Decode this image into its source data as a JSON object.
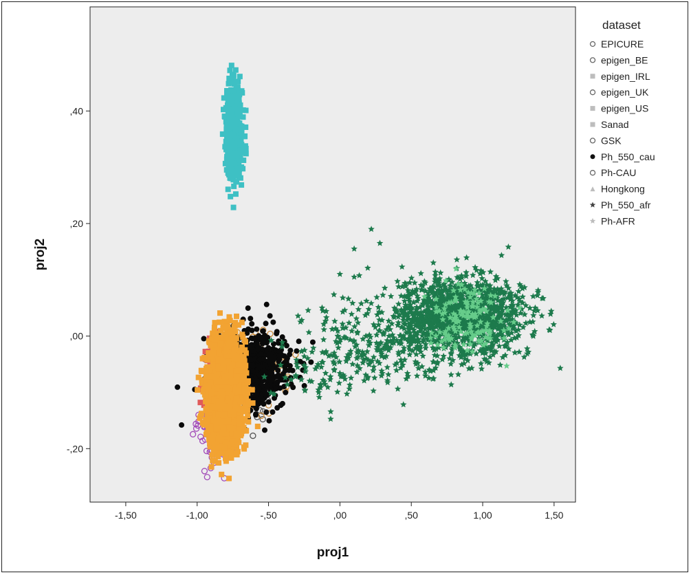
{
  "chart_data": {
    "type": "scatter",
    "xlabel": "proj1",
    "ylabel": "proj2",
    "xlim": [
      -1.75,
      1.65
    ],
    "ylim": [
      -0.295,
      0.585
    ],
    "xticks": [
      -1.5,
      -1.0,
      -0.5,
      0.0,
      0.5,
      1.0,
      1.5
    ],
    "xtick_labels": [
      "-1,50",
      "-1,00",
      "-,50",
      ",00",
      ",50",
      "1,00",
      "1,50"
    ],
    "yticks": [
      -0.2,
      0.0,
      0.2,
      0.4
    ],
    "ytick_labels": [
      "-,20",
      ",00",
      ",20",
      ",40"
    ],
    "grid": false,
    "legend_title": "dataset",
    "legend_position": "right",
    "plot_background": "#ededed",
    "series": [
      {
        "name": "EPICURE",
        "marker": "circle-open",
        "color": "#555555",
        "clusters": [
          {
            "cx": -0.65,
            "cy": -0.09,
            "sx": 0.12,
            "sy": 0.045,
            "n": 30
          }
        ]
      },
      {
        "name": "epigen_BE",
        "marker": "circle-open",
        "color": "#999999",
        "clusters": [
          {
            "cx": -0.82,
            "cy": -0.12,
            "sx": 0.05,
            "sy": 0.04,
            "n": 40
          }
        ]
      },
      {
        "name": "epigen_IRL",
        "marker": "square-open",
        "color": "#d0d0d0",
        "clusters": [
          {
            "cx": -0.83,
            "cy": -0.1,
            "sx": 0.05,
            "sy": 0.05,
            "n": 40
          }
        ]
      },
      {
        "name": "epigen_UK",
        "marker": "circle-open",
        "color": "#a24bb8",
        "clusters": [
          {
            "cx": -0.86,
            "cy": -0.16,
            "sx": 0.06,
            "sy": 0.035,
            "n": 140
          }
        ]
      },
      {
        "name": "epigen_US",
        "marker": "square-open",
        "color": "#e05a5a",
        "clusters": [
          {
            "cx": -0.9,
            "cy": -0.08,
            "sx": 0.03,
            "sy": 0.045,
            "n": 60
          }
        ]
      },
      {
        "name": "Sanad",
        "marker": "square-open",
        "color": "#3ec0c4",
        "clusters": [
          {
            "cx": -0.74,
            "cy": 0.36,
            "sx": 0.028,
            "sy": 0.04,
            "n": 700
          }
        ]
      },
      {
        "name": "GSK",
        "marker": "circle-open",
        "color": "#c98a3a",
        "clusters": [
          {
            "cx": -0.62,
            "cy": -0.06,
            "sx": 0.12,
            "sy": 0.03,
            "n": 120
          }
        ]
      },
      {
        "name": "Ph_550_cau",
        "marker": "circle-filled",
        "color": "#0a0a0a",
        "clusters": [
          {
            "cx": -0.6,
            "cy": -0.06,
            "sx": 0.13,
            "sy": 0.035,
            "n": 650
          }
        ]
      },
      {
        "name": "Ph-CAU",
        "marker": "square-open",
        "color": "#f2a332",
        "clusters": [
          {
            "cx": -0.8,
            "cy": -0.1,
            "sx": 0.06,
            "sy": 0.045,
            "n": 2600
          }
        ]
      },
      {
        "name": "Hongkong",
        "marker": "triangle",
        "color": "#ececec",
        "clusters": [
          {
            "cx": -0.3,
            "cy": 0.0,
            "sx": 0.3,
            "sy": 0.15,
            "n": 0
          }
        ]
      },
      {
        "name": "Ph_550_afr",
        "marker": "star",
        "color": "#1d7a4c",
        "clusters": [
          {
            "cx": 0.85,
            "cy": 0.035,
            "sx": 0.22,
            "sy": 0.035,
            "n": 1300
          },
          {
            "cx": 0.25,
            "cy": -0.02,
            "sx": 0.25,
            "sy": 0.04,
            "n": 260
          },
          {
            "cx": -0.15,
            "cy": -0.06,
            "sx": 0.15,
            "sy": 0.03,
            "n": 60
          }
        ],
        "points": [
          [
            0.22,
            0.19
          ],
          [
            0.1,
            0.155
          ],
          [
            0.28,
            0.165
          ],
          [
            0.0,
            0.11
          ],
          [
            0.1,
            0.105
          ],
          [
            0.02,
            0.068
          ],
          [
            -0.12,
            0.045
          ]
        ]
      },
      {
        "name": "Ph-AFR",
        "marker": "star",
        "color": "#66cc8a",
        "clusters": [
          {
            "cx": 0.9,
            "cy": 0.03,
            "sx": 0.15,
            "sy": 0.03,
            "n": 140
          }
        ]
      }
    ]
  }
}
